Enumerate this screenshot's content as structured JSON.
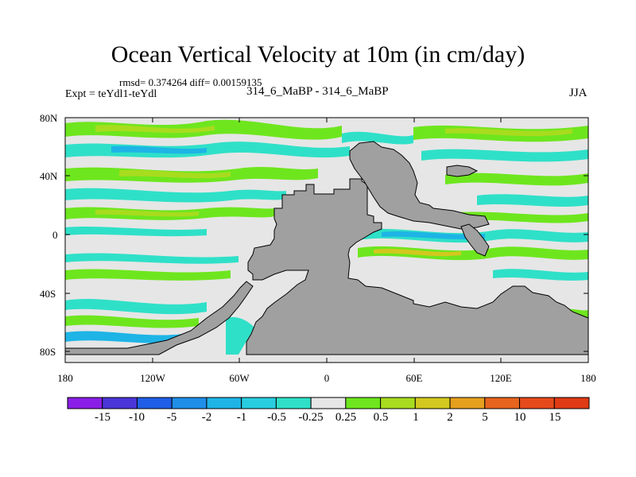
{
  "title": "Ocean Vertical Velocity at 10m (in cm/day)",
  "stats": "rmsd= 0.374264  diff= 0.00159135",
  "expt": "Expt = teYdl1-teYdl",
  "diff_label": "314_6_MaBP - 314_6_MaBP",
  "season": "JJA",
  "lat_labels": [
    "80N",
    "40N",
    "0",
    "40S",
    "80S"
  ],
  "lon_labels": [
    "180",
    "120W",
    "60W",
    "0",
    "60E",
    "120E",
    "180"
  ],
  "colorbar": {
    "labels": [
      "-15",
      "-10",
      "-5",
      "-2",
      "-1",
      "-0.5",
      "-0.25",
      "0.25",
      "0.5",
      "1",
      "2",
      "5",
      "10",
      "15"
    ],
    "colors": [
      "#8a1ee6",
      "#4a35d8",
      "#1f5ee6",
      "#1e8ee8",
      "#1eb4e6",
      "#28cde0",
      "#2fe0c8",
      "#e6e6e6",
      "#6ee61e",
      "#a8dc1e",
      "#d2c81e",
      "#e6a01e",
      "#e6641e",
      "#e64a1a",
      "#e03a14"
    ]
  },
  "colors": {
    "land": "#a0a0a0",
    "neutral": "#e6e6e6",
    "pos_green": "#6ee61e",
    "pos_yellow": "#a8dc1e",
    "neg_cyan": "#2fe0c8",
    "neg_blue": "#1eb4e6"
  }
}
